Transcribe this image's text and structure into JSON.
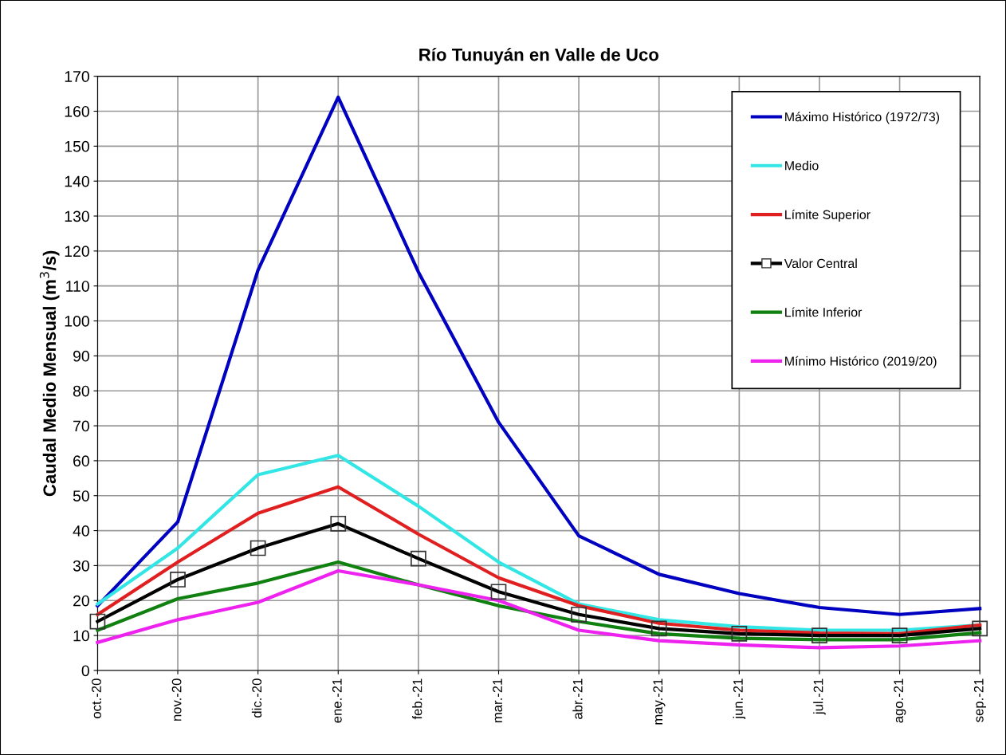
{
  "chart_data": {
    "type": "line",
    "title": "Río Tunuyán en Valle de Uco",
    "ylabel": "Caudal Medio Mensual (m$^{3}$/s)",
    "categories": [
      "oct.-20",
      "nov.-20",
      "dic.-20",
      "ene.-21",
      "feb.-21",
      "mar.-21",
      "abr.-21",
      "may.-21",
      "jun.-21",
      "jul.-21",
      "ago.-21",
      "sep.-21"
    ],
    "series": [
      {
        "name": "Máximo Histórico (1972/73)",
        "color": "#0000c0",
        "marker": "none",
        "values": [
          18.5,
          42.5,
          114.5,
          164,
          114,
          71,
          38.5,
          27.5,
          22,
          18,
          16,
          17.7
        ]
      },
      {
        "name": "Medio",
        "color": "#33e6e6",
        "marker": "none",
        "values": [
          19,
          35,
          56,
          61.5,
          47,
          31,
          19,
          14.5,
          12.5,
          11.5,
          11.5,
          13
        ]
      },
      {
        "name": "Límite Superior",
        "color": "#e02020",
        "marker": "none",
        "values": [
          16,
          31,
          45,
          52.5,
          39,
          26.5,
          18.5,
          13.5,
          11.5,
          10.7,
          10.5,
          13
        ]
      },
      {
        "name": "Valor Central",
        "color": "#000000",
        "marker": "square",
        "values": [
          14,
          26,
          35,
          42,
          32,
          22.5,
          16,
          12,
          10.5,
          10,
          10,
          12
        ]
      },
      {
        "name": "Límite Inferior",
        "color": "#108010",
        "marker": "none",
        "values": [
          11.5,
          20.5,
          25,
          31,
          24.5,
          18.5,
          14,
          10.5,
          9.2,
          8.8,
          8.8,
          10.8
        ]
      },
      {
        "name": "Mínimo Histórico (2019/20)",
        "color": "#ee22ee",
        "marker": "none",
        "values": [
          8,
          14.5,
          19.5,
          28.5,
          24.5,
          20,
          11.5,
          8.5,
          7.3,
          6.5,
          7,
          8.5
        ]
      }
    ],
    "ylim": [
      0,
      170
    ],
    "yticks": [
      0,
      10,
      20,
      30,
      40,
      50,
      60,
      70,
      80,
      90,
      100,
      110,
      120,
      130,
      140,
      150,
      160,
      170
    ],
    "grid": true,
    "legend": "top right",
    "line_style": "solid"
  }
}
